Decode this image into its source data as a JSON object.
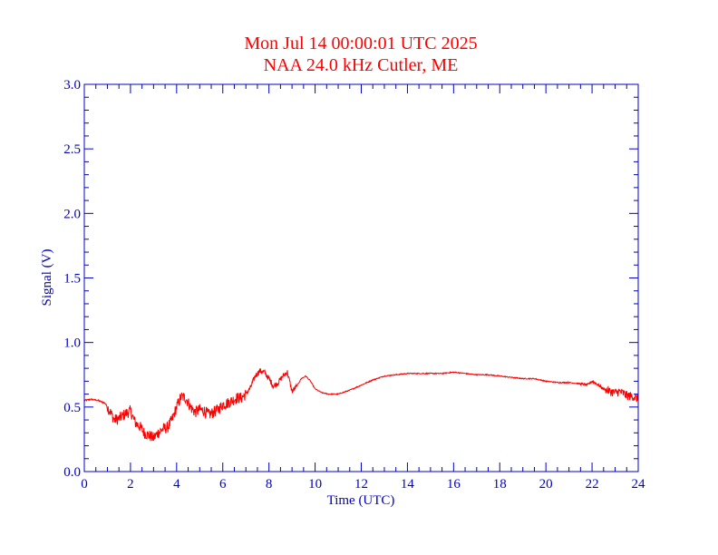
{
  "chart_data": {
    "type": "line",
    "title": "Mon Jul 14 00:00:01 UTC 2025",
    "subtitle": "NAA 24.0 kHz Cutler, ME",
    "xlabel": "Time (UTC)",
    "ylabel": "Signal (V)",
    "xlim": [
      0,
      24
    ],
    "ylim": [
      0,
      3
    ],
    "x_ticks": [
      0,
      2,
      4,
      6,
      8,
      10,
      12,
      14,
      16,
      18,
      20,
      22,
      24
    ],
    "x_tick_labels": [
      "0",
      "2",
      "4",
      "6",
      "8",
      "10",
      "12",
      "14",
      "16",
      "18",
      "20",
      "22",
      "24"
    ],
    "y_ticks": [
      0,
      0.5,
      1,
      1.5,
      2,
      2.5,
      3
    ],
    "y_tick_labels": [
      "0.0",
      "0.5",
      "1.0",
      "1.5",
      "2.0",
      "2.5",
      "3.0"
    ],
    "grid": false,
    "colors": {
      "axis": "#0000cc",
      "series": "#ff0000",
      "title": "#ff0000"
    },
    "series": [
      {
        "x": [
          0,
          0.3,
          0.6,
          0.9,
          1.1,
          1.3,
          1.5,
          1.8,
          2.0,
          2.2,
          2.4,
          2.6,
          2.8,
          3.0,
          3.2,
          3.4,
          3.6,
          3.8,
          4.0,
          4.2,
          4.4,
          4.6,
          4.8,
          5.0,
          5.2,
          5.4,
          5.6,
          5.8,
          6.0,
          6.2,
          6.4,
          6.6,
          6.8,
          7.0,
          7.2,
          7.4,
          7.6,
          7.8,
          8.0,
          8.2,
          8.4,
          8.6,
          8.8,
          9.0,
          9.2,
          9.4,
          9.6,
          9.8,
          10.0,
          10.3,
          10.6,
          11.0,
          11.5,
          12.0,
          12.5,
          13.0,
          13.5,
          14.0,
          14.5,
          15.0,
          15.5,
          16.0,
          16.5,
          17.0,
          17.5,
          18.0,
          18.5,
          19.0,
          19.5,
          20.0,
          20.5,
          21.0,
          21.5,
          21.8,
          22.0,
          22.2,
          22.5,
          22.8,
          23.0,
          23.2,
          23.5,
          23.8,
          24.0
        ],
        "y": [
          0.55,
          0.56,
          0.55,
          0.53,
          0.47,
          0.4,
          0.41,
          0.45,
          0.47,
          0.38,
          0.35,
          0.3,
          0.28,
          0.26,
          0.3,
          0.33,
          0.34,
          0.4,
          0.5,
          0.58,
          0.57,
          0.5,
          0.46,
          0.48,
          0.47,
          0.44,
          0.46,
          0.48,
          0.52,
          0.53,
          0.55,
          0.57,
          0.57,
          0.6,
          0.65,
          0.74,
          0.78,
          0.77,
          0.72,
          0.66,
          0.69,
          0.74,
          0.77,
          0.62,
          0.66,
          0.72,
          0.74,
          0.7,
          0.64,
          0.61,
          0.6,
          0.6,
          0.63,
          0.67,
          0.71,
          0.74,
          0.75,
          0.76,
          0.76,
          0.76,
          0.76,
          0.77,
          0.76,
          0.75,
          0.75,
          0.74,
          0.73,
          0.72,
          0.72,
          0.7,
          0.69,
          0.69,
          0.68,
          0.67,
          0.7,
          0.68,
          0.64,
          0.62,
          0.61,
          0.62,
          0.59,
          0.58,
          0.56
        ]
      }
    ]
  }
}
